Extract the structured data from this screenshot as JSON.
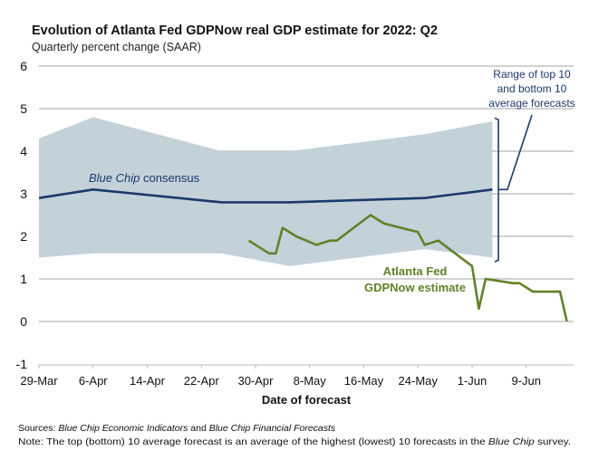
{
  "chart_data": {
    "type": "line",
    "title": "Evolution of Atlanta Fed GDPNow real GDP estimate for 2022: Q2",
    "subtitle": "Quarterly percent change (SAAR)",
    "xlabel": "Date of forecast",
    "ylabel": "",
    "ylim": [
      -1,
      6
    ],
    "yticks": [
      "6",
      "5",
      "4",
      "3",
      "2",
      "1",
      "0",
      "-1"
    ],
    "ytick_values": [
      6,
      5,
      4,
      3,
      2,
      1,
      0,
      -1
    ],
    "xlim": [
      "2022-03-29",
      "2022-06-16"
    ],
    "xticks": [
      "29-Mar",
      "6-Apr",
      "14-Apr",
      "22-Apr",
      "30-Apr",
      "8-May",
      "16-May",
      "24-May",
      "1-Jun",
      "9-Jun"
    ],
    "xtick_dates": [
      "2022-03-29",
      "2022-04-06",
      "2022-04-14",
      "2022-04-22",
      "2022-04-30",
      "2022-05-08",
      "2022-05-16",
      "2022-05-24",
      "2022-06-01",
      "2022-06-09"
    ],
    "grid": true,
    "band": {
      "name": "Range of top 10 and bottom 10 average forecasts",
      "color": "#c3d1d9",
      "dates": [
        "2022-03-29",
        "2022-04-06",
        "2022-04-25",
        "2022-05-05",
        "2022-05-25",
        "2022-06-04"
      ],
      "top": [
        4.3,
        4.8,
        4.0,
        4.0,
        4.4,
        4.7
      ],
      "bottom": [
        1.5,
        1.6,
        1.6,
        1.3,
        1.7,
        1.5
      ]
    },
    "series": [
      {
        "name": "Blue Chip consensus",
        "color": "#1b3a6b",
        "dates": [
          "2022-03-29",
          "2022-04-06",
          "2022-04-25",
          "2022-05-05",
          "2022-05-25",
          "2022-06-04"
        ],
        "values": [
          2.9,
          3.1,
          2.8,
          2.8,
          2.9,
          3.1
        ]
      },
      {
        "name": "Atlanta Fed GDPNow estimate",
        "color": "#62812a",
        "dates": [
          "2022-04-29",
          "2022-05-02",
          "2022-05-03",
          "2022-05-04",
          "2022-05-06",
          "2022-05-09",
          "2022-05-11",
          "2022-05-12",
          "2022-05-17",
          "2022-05-19",
          "2022-05-24",
          "2022-05-25",
          "2022-05-27",
          "2022-06-01",
          "2022-06-02",
          "2022-06-03",
          "2022-06-07",
          "2022-06-08",
          "2022-06-10",
          "2022-06-14",
          "2022-06-15"
        ],
        "values": [
          1.9,
          1.6,
          1.6,
          2.2,
          2.0,
          1.8,
          1.9,
          1.9,
          2.5,
          2.3,
          2.1,
          1.8,
          1.9,
          1.3,
          0.3,
          1.0,
          0.9,
          0.9,
          0.7,
          0.7,
          0.0
        ]
      }
    ],
    "annotations": {
      "blue_chip_label_italic": "Blue Chip",
      "blue_chip_label_rest": " consensus",
      "gdpnow_line1": "Atlanta Fed",
      "gdpnow_line2": "GDPNow estimate",
      "range_line1": "Range of top 10",
      "range_line2": "and bottom 10",
      "range_line3": "average forecasts"
    },
    "footer": {
      "sources_label": "Sources:",
      "sources_italic1": " Blue Chip Economic Indicators",
      "sources_mid": " and ",
      "sources_italic2": "Blue Chip Financial Forecasts",
      "note_label": "Note:",
      "note_text": " The top (bottom) 10 average forecast is an average of the highest (lowest) 10 forecasts in the ",
      "note_italic": "Blue Chip",
      "note_end": " survey."
    }
  }
}
